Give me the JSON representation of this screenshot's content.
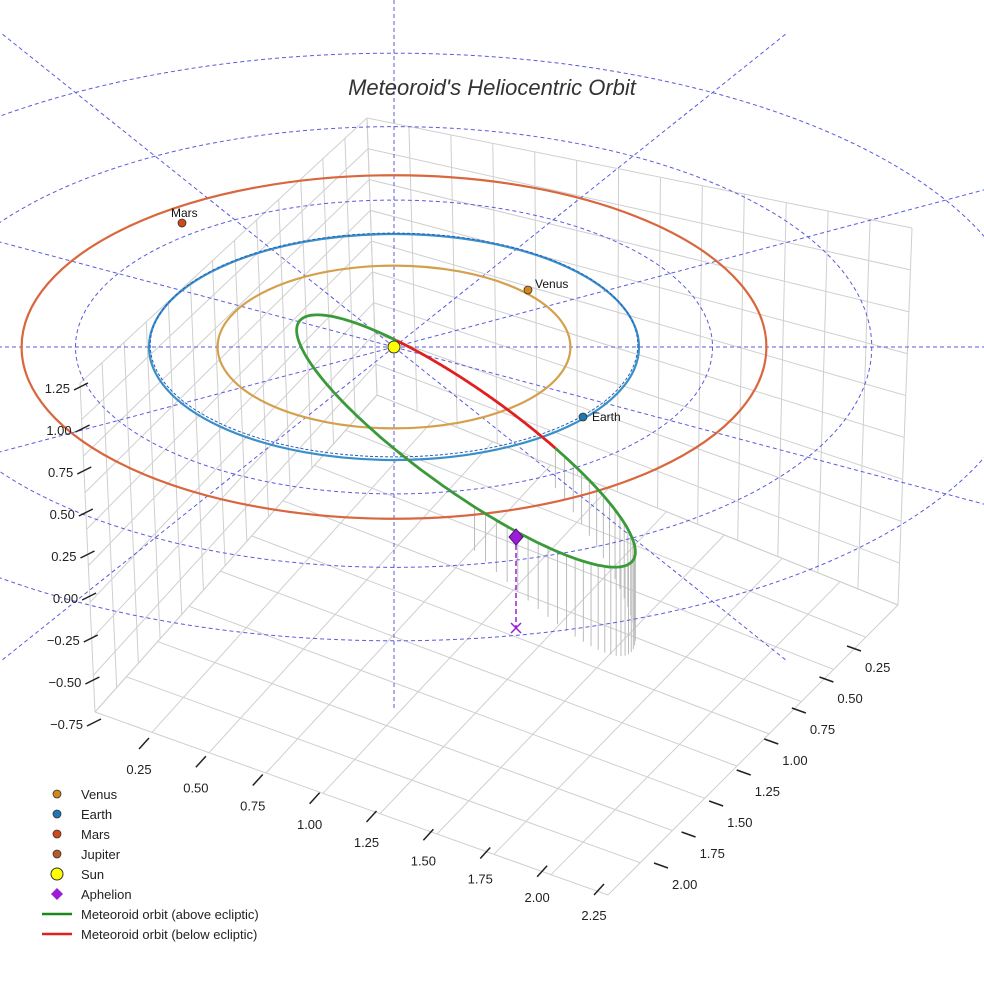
{
  "chart_data": {
    "type": "line",
    "title": "Meteoroid's Heliocentric Orbit",
    "axes": {
      "z_ticks": [
        "1.25",
        "1.00",
        "0.75",
        "0.50",
        "0.25",
        "0.00",
        "−0.25",
        "−0.50",
        "−0.75"
      ],
      "x_ticks": [
        "0.25",
        "0.50",
        "0.75",
        "1.00",
        "1.25",
        "1.50",
        "1.75",
        "2.00",
        "2.25"
      ],
      "y_ticks": [
        "0.25",
        "0.50",
        "0.75",
        "1.00",
        "1.25",
        "1.50",
        "1.75",
        "2.00"
      ],
      "grid": true
    },
    "planets": [
      {
        "name": "Venus",
        "orbit_radius_au": 0.72,
        "color": "#d4a04c",
        "marker_color": "#d4861a"
      },
      {
        "name": "Earth",
        "orbit_radius_au": 1.0,
        "color": "#3a8fc8",
        "marker_color": "#1f77b4"
      },
      {
        "name": "Mars",
        "orbit_radius_au": 1.52,
        "color": "#d9673e",
        "marker_color": "#d1491a"
      }
    ],
    "point_labels": {
      "venus": "Venus",
      "earth": "Earth",
      "mars": "Mars"
    },
    "series": [
      {
        "name": "Meteoroid orbit (above ecliptic)",
        "color": "#3a9a3a"
      },
      {
        "name": "Meteoroid orbit (below ecliptic)",
        "color": "#e02020"
      }
    ],
    "ecliptic_grid_color": "#5b5bde",
    "aphelion_color": "#9b1ed6",
    "sun_color": "#ffff00"
  },
  "legend": {
    "items": [
      {
        "label": "Venus",
        "marker": "circle",
        "color": "#d4861a"
      },
      {
        "label": "Earth",
        "marker": "circle",
        "color": "#1f77b4"
      },
      {
        "label": "Mars",
        "marker": "circle",
        "color": "#d1491a"
      },
      {
        "label": "Jupiter",
        "marker": "circle",
        "color": "#b9582c"
      },
      {
        "label": "Sun",
        "marker": "sun",
        "color": "#ffff00"
      },
      {
        "label": "Aphelion",
        "marker": "diamond",
        "color": "#9b1ed6"
      },
      {
        "label": "Meteoroid orbit (above ecliptic)",
        "marker": "line",
        "color": "#1a8a1a"
      },
      {
        "label": "Meteoroid orbit (below ecliptic)",
        "marker": "line",
        "color": "#e02020"
      }
    ]
  }
}
